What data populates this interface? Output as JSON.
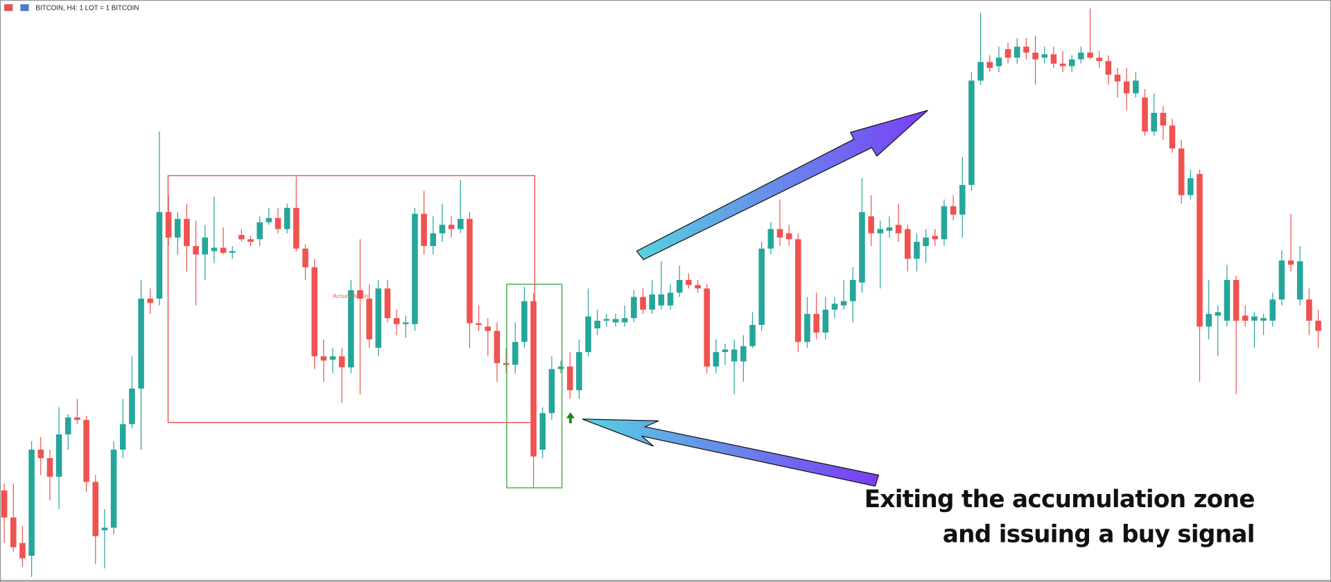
{
  "header": {
    "title": "BITCOIN, H4:  1 LOT = 1 BITCOIN"
  },
  "chart_data": {
    "type": "candlestick",
    "zone_label": "Accumulation",
    "annotation": [
      "Exiting the accumulation zone",
      "and issuing a buy signal"
    ],
    "up_color": "#26a69a",
    "down_color": "#ef5350",
    "ylim": [
      0,
      670
    ],
    "open": [
      106,
      74,
      44,
      29,
      154,
      144,
      122,
      172,
      192,
      189,
      116,
      59,
      62,
      154,
      184,
      226,
      332,
      332,
      434,
      404,
      426,
      394,
      384,
      388,
      392,
      386,
      407,
      402,
      402,
      422,
      427,
      414,
      439,
      391,
      369,
      264,
      260,
      264,
      251,
      342,
      332,
      274,
      344,
      309,
      302,
      302,
      432,
      394,
      409,
      419,
      414,
      426,
      303,
      299,
      294,
      256,
      254,
      281,
      329,
      154,
      197,
      249,
      252,
      224,
      269,
      297,
      306,
      304,
      304,
      309,
      334,
      319,
      324,
      324,
      339,
      354,
      348,
      344,
      252,
      269,
      258,
      258,
      276,
      301,
      391,
      414,
      409,
      402,
      281,
      314,
      292,
      319,
      324,
      329,
      351,
      429,
      409,
      412,
      419,
      414,
      379,
      394,
      406,
      402,
      441,
      431,
      466,
      589,
      611,
      606,
      626,
      616,
      629,
      622,
      616,
      620,
      609,
      606,
      614,
      622,
      616,
      612,
      596,
      588,
      574,
      569,
      529,
      551,
      536,
      509,
      454,
      479,
      299,
      312,
      306,
      354,
      312,
      306,
      306,
      306,
      331,
      377,
      331,
      331,
      306
    ],
    "high": [
      114,
      114,
      64,
      164,
      169,
      154,
      204,
      196,
      214,
      194,
      124,
      84,
      164,
      214,
      264,
      354,
      344,
      529,
      454,
      434,
      444,
      424,
      419,
      452,
      416,
      394,
      414,
      406,
      429,
      439,
      439,
      444,
      476,
      396,
      379,
      284,
      274,
      274,
      354,
      402,
      349,
      354,
      354,
      319,
      312,
      439,
      459,
      429,
      444,
      429,
      472,
      434,
      324,
      309,
      304,
      274,
      304,
      346,
      339,
      204,
      264,
      259,
      269,
      284,
      344,
      319,
      314,
      314,
      324,
      342,
      344,
      354,
      376,
      349,
      371,
      362,
      354,
      349,
      284,
      279,
      284,
      289,
      316,
      399,
      422,
      449,
      419,
      409,
      334,
      339,
      334,
      334,
      354,
      369,
      474,
      454,
      424,
      429,
      444,
      419,
      409,
      414,
      414,
      449,
      454,
      499,
      599,
      669,
      619,
      629,
      634,
      639,
      639,
      642,
      629,
      629,
      624,
      619,
      629,
      674,
      624,
      619,
      604,
      604,
      599,
      579,
      574,
      559,
      544,
      519,
      484,
      484,
      354,
      324,
      372,
      359,
      324,
      316,
      314,
      339,
      389,
      432,
      394,
      344,
      319
    ],
    "low": [
      44,
      34,
      16,
      4,
      124,
      94,
      84,
      154,
      184,
      104,
      19,
      14,
      54,
      144,
      179,
      154,
      314,
      324,
      394,
      384,
      364,
      324,
      354,
      374,
      384,
      379,
      399,
      394,
      394,
      419,
      409,
      409,
      388,
      354,
      249,
      234,
      244,
      209,
      244,
      219,
      274,
      264,
      304,
      289,
      286,
      294,
      384,
      384,
      399,
      404,
      409,
      274,
      294,
      264,
      234,
      244,
      244,
      274,
      109,
      144,
      189,
      244,
      214,
      214,
      264,
      289,
      299,
      299,
      299,
      304,
      314,
      314,
      319,
      319,
      334,
      344,
      339,
      244,
      244,
      254,
      219,
      234,
      274,
      294,
      384,
      394,
      394,
      269,
      274,
      284,
      284,
      309,
      319,
      304,
      339,
      394,
      344,
      404,
      399,
      364,
      364,
      374,
      394,
      394,
      424,
      404,
      459,
      584,
      599,
      599,
      609,
      609,
      614,
      584,
      609,
      604,
      599,
      599,
      609,
      614,
      604,
      584,
      569,
      554,
      569,
      524,
      524,
      519,
      504,
      444,
      449,
      234,
      284,
      264,
      299,
      219,
      299,
      274,
      289,
      299,
      324,
      364,
      324,
      289,
      274
    ],
    "close": [
      74,
      39,
      26,
      154,
      144,
      122,
      172,
      192,
      189,
      116,
      52,
      62,
      154,
      184,
      226,
      332,
      327,
      434,
      404,
      426,
      394,
      384,
      404,
      392,
      386,
      388,
      402,
      399,
      422,
      427,
      414,
      439,
      391,
      369,
      264,
      259,
      264,
      251,
      342,
      332,
      284,
      344,
      309,
      302,
      304,
      432,
      394,
      409,
      419,
      414,
      426,
      303,
      301,
      294,
      256,
      254,
      281,
      329,
      146,
      197,
      249,
      252,
      224,
      269,
      311,
      306,
      308,
      308,
      309,
      334,
      319,
      337,
      337,
      339,
      354,
      348,
      344,
      252,
      269,
      272,
      272,
      276,
      301,
      391,
      414,
      404,
      402,
      281,
      314,
      292,
      319,
      326,
      329,
      354,
      434,
      409,
      414,
      416,
      409,
      379,
      399,
      404,
      402,
      441,
      431,
      466,
      589,
      611,
      604,
      616,
      616,
      629,
      622,
      614,
      620,
      609,
      606,
      614,
      622,
      616,
      612,
      596,
      588,
      574,
      589,
      529,
      551,
      536,
      509,
      454,
      474,
      299,
      314,
      316,
      354,
      306,
      306,
      311,
      309,
      331,
      377,
      372,
      376,
      306,
      294
    ]
  }
}
